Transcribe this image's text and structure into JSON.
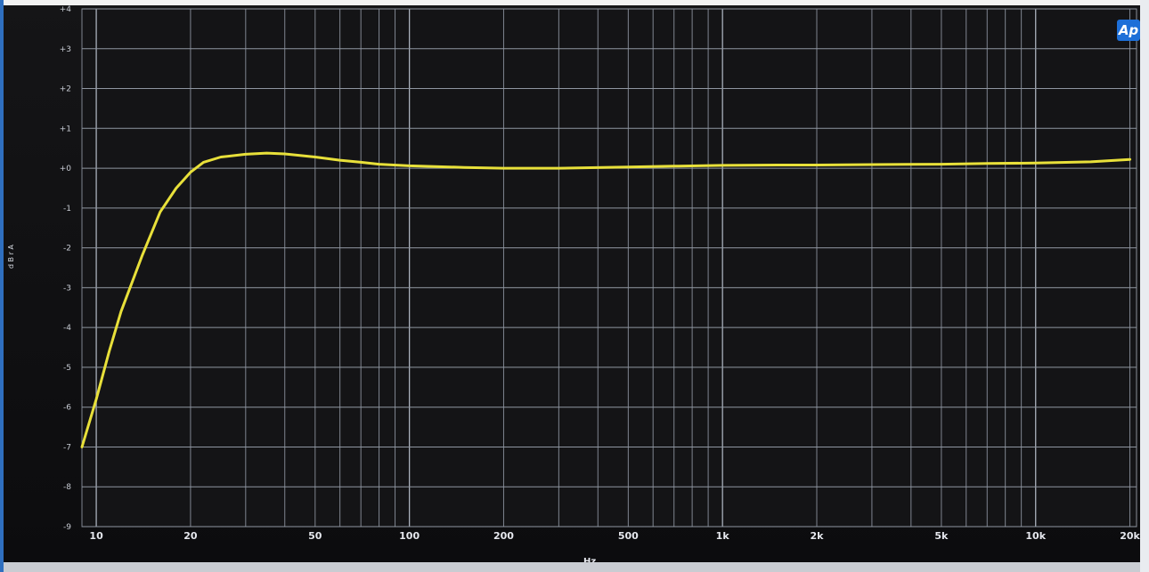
{
  "window": {
    "logo_text": "Ap"
  },
  "chart_data": {
    "type": "line",
    "title": "",
    "xlabel": "Hz",
    "ylabel": "d B r A",
    "x_scale": "log",
    "xlim": [
      9,
      21000
    ],
    "ylim": [
      -9,
      4
    ],
    "grid": true,
    "x_tick_labels": [
      {
        "value": 10,
        "label": "10"
      },
      {
        "value": 20,
        "label": "20"
      },
      {
        "value": 50,
        "label": "50"
      },
      {
        "value": 100,
        "label": "100"
      },
      {
        "value": 200,
        "label": "200"
      },
      {
        "value": 500,
        "label": "500"
      },
      {
        "value": 1000,
        "label": "1k"
      },
      {
        "value": 2000,
        "label": "2k"
      },
      {
        "value": 5000,
        "label": "5k"
      },
      {
        "value": 10000,
        "label": "10k"
      },
      {
        "value": 20000,
        "label": "20k"
      }
    ],
    "y_ticks": [
      4,
      3,
      2,
      1,
      0,
      -1,
      -2,
      -3,
      -4,
      -5,
      -6,
      -7,
      -8,
      -9
    ],
    "y_tick_labels": [
      "+4",
      "+3",
      "+2",
      "+1",
      "+0",
      "-1",
      "-2",
      "-3",
      "-4",
      "-5",
      "-6",
      "-7",
      "-8",
      "-9"
    ],
    "series": [
      {
        "color": "#e8e03a",
        "x": [
          9,
          10,
          11,
          12,
          14,
          16,
          18,
          20,
          22,
          25,
          30,
          35,
          40,
          50,
          60,
          70,
          80,
          100,
          150,
          200,
          300,
          500,
          700,
          1000,
          1500,
          2000,
          3000,
          5000,
          7000,
          10000,
          15000,
          20000
        ],
        "y": [
          -7.0,
          -5.8,
          -4.6,
          -3.6,
          -2.2,
          -1.1,
          -0.5,
          -0.1,
          0.15,
          0.28,
          0.35,
          0.38,
          0.36,
          0.28,
          0.2,
          0.15,
          0.1,
          0.06,
          0.02,
          0.0,
          0.0,
          0.03,
          0.05,
          0.07,
          0.08,
          0.08,
          0.09,
          0.1,
          0.12,
          0.13,
          0.16,
          0.22
        ]
      }
    ]
  }
}
